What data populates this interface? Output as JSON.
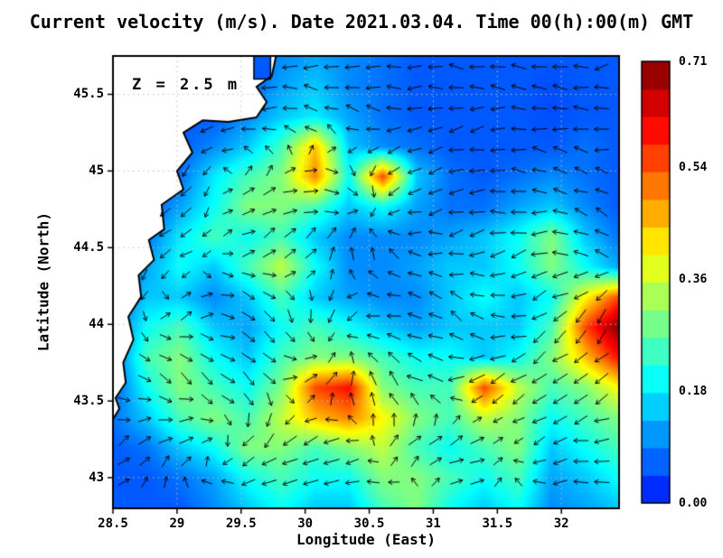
{
  "chart_data": {
    "type": "heatmap",
    "title": "Current velocity (m/s). Date 2021.03.04. Time 00(h):00(m) GMT",
    "annotation": "Z = 2.5 m",
    "xlabel": "Longitude (East)",
    "ylabel": "Latitude (North)",
    "xlim": [
      28.5,
      32.45
    ],
    "ylim": [
      42.8,
      45.75
    ],
    "xticks": [
      {
        "v": 28.5,
        "label": "28.5"
      },
      {
        "v": 29,
        "label": "29"
      },
      {
        "v": 29.5,
        "label": "29.5"
      },
      {
        "v": 30,
        "label": "30"
      },
      {
        "v": 30.5,
        "label": "30.5"
      },
      {
        "v": 31,
        "label": "31"
      },
      {
        "v": 31.5,
        "label": "31.5"
      },
      {
        "v": 32,
        "label": "32"
      }
    ],
    "yticks": [
      {
        "v": 43,
        "label": "43"
      },
      {
        "v": 43.5,
        "label": "43.5"
      },
      {
        "v": 44,
        "label": "44"
      },
      {
        "v": 44.5,
        "label": "44.5"
      },
      {
        "v": 45,
        "label": "45"
      },
      {
        "v": 45.5,
        "label": "45.5"
      }
    ],
    "colorbar": {
      "min": 0.0,
      "max": 0.71,
      "units": "m/s",
      "ticks": [
        {
          "v": 0.0,
          "label": "0.00"
        },
        {
          "v": 0.18,
          "label": "0.18"
        },
        {
          "v": 0.36,
          "label": "0.36"
        },
        {
          "v": 0.54,
          "label": "0.54"
        },
        {
          "v": 0.71,
          "label": "0.71"
        }
      ]
    },
    "colormap": "jet",
    "grid_lines": "dotted",
    "speed_grid_rows_top_to_bottom": [
      [
        0.06,
        0.06,
        0.06,
        0.06,
        0.06,
        0.1,
        0.12,
        0.1,
        0.08,
        0.06,
        0.06,
        0.06,
        0.06,
        0.06,
        0.06,
        0.06
      ],
      [
        0.06,
        0.06,
        0.06,
        0.06,
        0.06,
        0.12,
        0.15,
        0.1,
        0.08,
        0.06,
        0.06,
        0.06,
        0.06,
        0.05,
        0.06,
        0.06
      ],
      [
        0.06,
        0.06,
        0.06,
        0.06,
        0.1,
        0.15,
        0.18,
        0.12,
        0.08,
        0.06,
        0.06,
        0.06,
        0.06,
        0.05,
        0.06,
        0.06
      ],
      [
        0.06,
        0.06,
        0.06,
        0.1,
        0.15,
        0.25,
        0.45,
        0.15,
        0.1,
        0.08,
        0.06,
        0.06,
        0.06,
        0.06,
        0.08,
        0.06
      ],
      [
        0.06,
        0.06,
        0.08,
        0.18,
        0.25,
        0.3,
        0.5,
        0.2,
        0.55,
        0.15,
        0.08,
        0.06,
        0.08,
        0.1,
        0.08,
        0.06
      ],
      [
        0.06,
        0.06,
        0.12,
        0.2,
        0.3,
        0.3,
        0.25,
        0.15,
        0.2,
        0.12,
        0.08,
        0.08,
        0.12,
        0.15,
        0.1,
        0.06
      ],
      [
        0.06,
        0.08,
        0.18,
        0.25,
        0.2,
        0.25,
        0.15,
        0.1,
        0.1,
        0.1,
        0.12,
        0.15,
        0.2,
        0.3,
        0.15,
        0.08
      ],
      [
        0.06,
        0.12,
        0.2,
        0.15,
        0.25,
        0.35,
        0.2,
        0.1,
        0.1,
        0.12,
        0.15,
        0.15,
        0.2,
        0.3,
        0.2,
        0.12
      ],
      [
        0.06,
        0.15,
        0.15,
        0.1,
        0.15,
        0.25,
        0.15,
        0.12,
        0.1,
        0.1,
        0.15,
        0.2,
        0.15,
        0.2,
        0.4,
        0.55
      ],
      [
        0.06,
        0.2,
        0.25,
        0.15,
        0.12,
        0.2,
        0.25,
        0.2,
        0.15,
        0.12,
        0.15,
        0.15,
        0.15,
        0.25,
        0.55,
        0.71
      ],
      [
        0.06,
        0.25,
        0.3,
        0.2,
        0.15,
        0.25,
        0.3,
        0.3,
        0.25,
        0.2,
        0.2,
        0.15,
        0.2,
        0.3,
        0.45,
        0.6
      ],
      [
        0.06,
        0.2,
        0.3,
        0.25,
        0.2,
        0.3,
        0.55,
        0.6,
        0.3,
        0.25,
        0.25,
        0.55,
        0.35,
        0.25,
        0.3,
        0.4
      ],
      [
        0.08,
        0.15,
        0.25,
        0.3,
        0.25,
        0.35,
        0.45,
        0.5,
        0.4,
        0.3,
        0.25,
        0.35,
        0.3,
        0.2,
        0.25,
        0.3
      ],
      [
        0.06,
        0.08,
        0.15,
        0.2,
        0.3,
        0.3,
        0.25,
        0.3,
        0.35,
        0.25,
        0.2,
        0.25,
        0.3,
        0.15,
        0.2,
        0.25
      ],
      [
        0.06,
        0.06,
        0.08,
        0.12,
        0.2,
        0.25,
        0.2,
        0.2,
        0.3,
        0.3,
        0.25,
        0.2,
        0.25,
        0.12,
        0.15,
        0.2
      ],
      [
        0.06,
        0.06,
        0.06,
        0.1,
        0.15,
        0.2,
        0.15,
        0.15,
        0.25,
        0.3,
        0.2,
        0.15,
        0.2,
        0.1,
        0.12,
        0.15
      ]
    ],
    "vectors": {
      "u_grid_rows_top_to_bottom": [
        [
          0,
          0,
          -0.5,
          -0.5,
          -0.4,
          -0.5,
          -0.5,
          -0.4
        ],
        [
          0,
          -0.3,
          -0.5,
          -0.3,
          -0.5,
          -0.4,
          -0.5,
          -0.5
        ],
        [
          0,
          -0.2,
          0.3,
          0.5,
          -0.3,
          -0.5,
          -0.4,
          -0.3
        ],
        [
          -0.2,
          -0.3,
          0.4,
          0.2,
          -0.3,
          -0.5,
          -0.6,
          -0.4
        ],
        [
          -0.2,
          0.3,
          0.4,
          -0.2,
          -0.4,
          -0.3,
          -0.5,
          -0.3
        ],
        [
          0.2,
          0.4,
          0.5,
          0.3,
          -0.5,
          -0.6,
          -0.5,
          -0.4
        ],
        [
          0.3,
          0.4,
          -0.4,
          -0.6,
          0.4,
          0.5,
          -0.4,
          -0.5
        ],
        [
          0.2,
          -0.3,
          -0.5,
          -0.4,
          -0.5,
          0.3,
          -0.4,
          -0.5
        ]
      ],
      "v_grid_rows_top_to_bottom": [
        [
          0,
          0,
          0.1,
          -0.1,
          0,
          0.1,
          0,
          -0.1
        ],
        [
          0,
          -0.2,
          0,
          0.2,
          0,
          -0.1,
          0.1,
          0
        ],
        [
          0,
          -0.3,
          0.3,
          -0.2,
          -0.3,
          0,
          0.2,
          0.1
        ],
        [
          -0.3,
          -0.2,
          0.2,
          0.4,
          0.2,
          -0.2,
          -0.1,
          0.3
        ],
        [
          -0.3,
          0.2,
          -0.3,
          -0.4,
          0.1,
          0.3,
          -0.3,
          -0.5
        ],
        [
          -0.2,
          -0.3,
          -0.4,
          0.5,
          0.4,
          -0.2,
          -0.4,
          -0.4
        ],
        [
          0.2,
          0.3,
          -0.5,
          -0.2,
          0.3,
          0.2,
          -0.2,
          0.1
        ],
        [
          0.2,
          0.1,
          0.2,
          -0.2,
          -0.1,
          0.2,
          0.1,
          0
        ]
      ]
    },
    "coastline": [
      [
        29.78,
        45.78
      ],
      [
        29.74,
        45.62
      ],
      [
        29.62,
        45.55
      ],
      [
        29.7,
        45.45
      ],
      [
        29.62,
        45.35
      ],
      [
        29.4,
        45.32
      ],
      [
        29.2,
        45.33
      ],
      [
        29.05,
        45.25
      ],
      [
        29.12,
        45.12
      ],
      [
        29.0,
        45.0
      ],
      [
        29.05,
        44.88
      ],
      [
        28.88,
        44.78
      ],
      [
        28.9,
        44.62
      ],
      [
        28.78,
        44.55
      ],
      [
        28.82,
        44.42
      ],
      [
        28.7,
        44.32
      ],
      [
        28.72,
        44.18
      ],
      [
        28.62,
        44.05
      ],
      [
        28.66,
        43.9
      ],
      [
        28.58,
        43.75
      ],
      [
        28.6,
        43.62
      ],
      [
        28.52,
        43.52
      ],
      [
        28.55,
        43.45
      ],
      [
        28.5,
        43.38
      ]
    ],
    "inlet": {
      "lon": [
        29.6,
        29.73
      ],
      "lat": [
        45.6,
        45.78
      ],
      "speed": 0.06
    }
  },
  "colors": {
    "background": "#ffffff",
    "land": "#ffffff",
    "coast": "#000000",
    "frame": "#000000",
    "gridline": "#bebebe",
    "arrow": "#000000",
    "text": "#000000"
  }
}
